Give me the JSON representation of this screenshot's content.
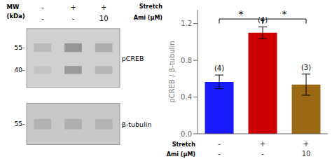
{
  "chart_data": [
    {
      "type": "blot",
      "mw_title": [
        "MW",
        "(kDa)"
      ],
      "column_titles": [
        "Stretch",
        "Ami (μM)"
      ],
      "columns": [
        [
          "-",
          "-"
        ],
        [
          "+",
          "-"
        ],
        [
          "+",
          "10"
        ]
      ],
      "panels": [
        {
          "name": "pCREB",
          "bands": [
            {
              "mw": "55-",
              "intensities": [
                0.5,
                0.75,
                0.58
              ]
            },
            {
              "mw": "40-",
              "intensities": [
                0.42,
                0.72,
                0.52
              ]
            }
          ]
        },
        {
          "name": "β-tubulin",
          "bands": [
            {
              "mw": "55-",
              "intensities": [
                0.55,
                0.57,
                0.54
              ]
            }
          ]
        }
      ]
    },
    {
      "type": "bar",
      "categories": [
        [
          "-",
          "-"
        ],
        [
          "+",
          "-"
        ],
        [
          "+",
          "10"
        ]
      ],
      "category_titles": [
        "Stretch",
        "Ami (μM)"
      ],
      "values": [
        0.565,
        1.1,
        0.535
      ],
      "errors": [
        0.075,
        0.065,
        0.115
      ],
      "colors": [
        "#1a1aff",
        "#cc0000",
        "#9b6914"
      ],
      "n_labels": [
        "(4)",
        "(4)",
        "(3)"
      ],
      "significance": [
        {
          "pair": [
            0,
            1
          ],
          "label": "*",
          "y": 1.25
        },
        {
          "pair": [
            1,
            2
          ],
          "label": "*",
          "y": 1.25
        }
      ],
      "ylabel": "pCREB / β-tubulin",
      "ylim": [
        0,
        1.35
      ],
      "yticks": [
        {
          "value": 0,
          "label": "0.0"
        },
        0.4,
        0.8,
        1.2
      ],
      "grid": false
    }
  ]
}
